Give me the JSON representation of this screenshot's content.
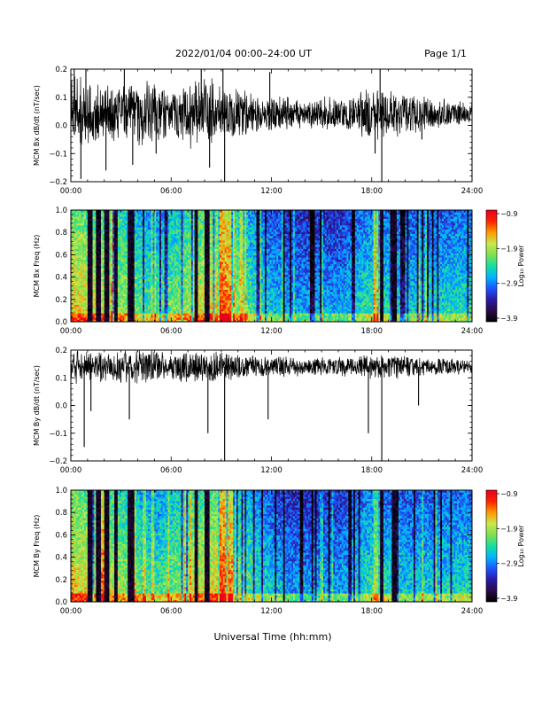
{
  "header": {
    "title": "2022/01/04  00:00–24:00 UT",
    "page": "Page 1/1"
  },
  "xlabel": "Universal Time (hh:mm)",
  "colorbar_label": "Log₁₀ Power",
  "colors": {
    "colormap": [
      "#000000",
      "#2a0a4a",
      "#2b1aa6",
      "#1c55ff",
      "#00b4ff",
      "#16e0a0",
      "#7fe050",
      "#c8e84a",
      "#ff9a00",
      "#ff2200",
      "#e6001a"
    ]
  },
  "chart_data": [
    {
      "type": "line",
      "series": [
        {
          "name": "",
          "values": []
        }
      ],
      "ylabel": "MCM Bx dB/dt (nT/sec)",
      "xlabel": "",
      "xlim": [
        0,
        24
      ],
      "ylim": [
        -0.2,
        0.2
      ],
      "xticks": [
        "00:00",
        "06:00",
        "12:00",
        "18:00",
        "24:00"
      ],
      "yticks": [
        "−0.2",
        "−0.1",
        "0.0",
        "0.1",
        "0.2"
      ],
      "baseline": 0.04,
      "activity_profile": [
        [
          0,
          0.14
        ],
        [
          1,
          0.14
        ],
        [
          2,
          0.11
        ],
        [
          3,
          0.11
        ],
        [
          4,
          0.13
        ],
        [
          5,
          0.12
        ],
        [
          6,
          0.09
        ],
        [
          7,
          0.13
        ],
        [
          8,
          0.14
        ],
        [
          9,
          0.12
        ],
        [
          10,
          0.1
        ],
        [
          11,
          0.08
        ],
        [
          12,
          0.07
        ],
        [
          13,
          0.07
        ],
        [
          14,
          0.06
        ],
        [
          15,
          0.07
        ],
        [
          16,
          0.07
        ],
        [
          17,
          0.08
        ],
        [
          18,
          0.1
        ],
        [
          19,
          0.09
        ],
        [
          20,
          0.08
        ],
        [
          21,
          0.07
        ],
        [
          22,
          0.06
        ],
        [
          23,
          0.05
        ],
        [
          24,
          0.04
        ]
      ],
      "spikes": [
        {
          "x": 0.2,
          "y": 0.2
        },
        {
          "x": 0.6,
          "y": -0.19
        },
        {
          "x": 0.9,
          "y": 0.2
        },
        {
          "x": 2.1,
          "y": -0.16
        },
        {
          "x": 3.2,
          "y": 0.2
        },
        {
          "x": 3.7,
          "y": -0.14
        },
        {
          "x": 5.1,
          "y": -0.1
        },
        {
          "x": 7.8,
          "y": 0.2
        },
        {
          "x": 8.3,
          "y": -0.15
        },
        {
          "x": 9.1,
          "y": 0.2
        },
        {
          "x": 9.2,
          "y": -0.2
        },
        {
          "x": 11.9,
          "y": 0.19
        },
        {
          "x": 18.2,
          "y": -0.1
        },
        {
          "x": 18.5,
          "y": 0.2
        },
        {
          "x": 18.6,
          "y": -0.2
        },
        {
          "x": 21.0,
          "y": -0.05
        }
      ]
    },
    {
      "type": "heatmap",
      "ylabel": "MCM Bx Freq (Hz)",
      "xlabel": "",
      "xlim": [
        0,
        24
      ],
      "ylim": [
        0,
        1.0
      ],
      "xticks": [
        "00:00",
        "06:00",
        "12:00",
        "18:00",
        "24:00"
      ],
      "yticks": [
        "0.0",
        "0.2",
        "0.4",
        "0.6",
        "0.8",
        "1.0"
      ],
      "colorbar": {
        "min": -3.9,
        "max": -0.9,
        "ticks": [
          "−0.9",
          "−1.9",
          "−2.9",
          "−3.9"
        ]
      },
      "dark_bands": [
        [
          1.0,
          1.25
        ],
        [
          1.5,
          1.75
        ],
        [
          2.05,
          2.25
        ],
        [
          2.6,
          2.75
        ],
        [
          3.4,
          3.8
        ],
        [
          7.4,
          7.55
        ],
        [
          8.0,
          8.25
        ],
        [
          12.7,
          12.8
        ],
        [
          18.5,
          18.7
        ],
        [
          19.2,
          19.5
        ]
      ],
      "bright_bands": [
        [
          8.8,
          9.8
        ],
        [
          18.1,
          18.4
        ]
      ],
      "activity_profile": [
        [
          0,
          -1.9
        ],
        [
          3,
          -2.2
        ],
        [
          5,
          -2.6
        ],
        [
          7,
          -2.2
        ],
        [
          9,
          -1.9
        ],
        [
          11,
          -2.6
        ],
        [
          13,
          -3.0
        ],
        [
          16,
          -3.0
        ],
        [
          18,
          -2.6
        ],
        [
          20,
          -2.8
        ],
        [
          24,
          -2.7
        ]
      ]
    },
    {
      "type": "line",
      "series": [
        {
          "name": "",
          "values": []
        }
      ],
      "ylabel": "MCM By dB/dt (nT/sec)",
      "xlabel": "",
      "xlim": [
        0,
        24
      ],
      "ylim": [
        -0.2,
        0.2
      ],
      "xticks": [
        "00:00",
        "06:00",
        "12:00",
        "18:00",
        "24:00"
      ],
      "yticks": [
        "−0.2",
        "−0.1",
        "0.0",
        "0.1",
        "0.2"
      ],
      "baseline": 0.14,
      "activity_profile": [
        [
          0,
          0.07
        ],
        [
          1,
          0.07
        ],
        [
          2,
          0.06
        ],
        [
          3,
          0.06
        ],
        [
          4,
          0.07
        ],
        [
          5,
          0.06
        ],
        [
          6,
          0.05
        ],
        [
          7,
          0.06
        ],
        [
          8,
          0.06
        ],
        [
          9,
          0.06
        ],
        [
          10,
          0.05
        ],
        [
          11,
          0.045
        ],
        [
          12,
          0.04
        ],
        [
          13,
          0.04
        ],
        [
          14,
          0.035
        ],
        [
          15,
          0.04
        ],
        [
          16,
          0.04
        ],
        [
          17,
          0.04
        ],
        [
          18,
          0.05
        ],
        [
          19,
          0.05
        ],
        [
          20,
          0.045
        ],
        [
          21,
          0.04
        ],
        [
          22,
          0.035
        ],
        [
          23,
          0.03
        ],
        [
          24,
          0.03
        ]
      ],
      "spikes": [
        {
          "x": 0.8,
          "y": -0.15
        },
        {
          "x": 1.2,
          "y": -0.02
        },
        {
          "x": 3.5,
          "y": -0.05
        },
        {
          "x": 8.2,
          "y": -0.1
        },
        {
          "x": 9.2,
          "y": -0.2
        },
        {
          "x": 11.8,
          "y": -0.05
        },
        {
          "x": 17.8,
          "y": -0.1
        },
        {
          "x": 18.6,
          "y": -0.2
        },
        {
          "x": 20.8,
          "y": 0.0
        }
      ]
    },
    {
      "type": "heatmap",
      "ylabel": "MCM By Freq (Hz)",
      "xlabel": "",
      "xlim": [
        0,
        24
      ],
      "ylim": [
        0,
        1.0
      ],
      "xticks": [
        "00:00",
        "06:00",
        "12:00",
        "18:00",
        "24:00"
      ],
      "yticks": [
        "0.0",
        "0.2",
        "0.4",
        "0.6",
        "0.8",
        "1.0"
      ],
      "colorbar": {
        "min": -3.9,
        "max": -0.9,
        "ticks": [
          "−0.9",
          "−1.9",
          "−2.9",
          "−3.9"
        ]
      },
      "dark_bands": [
        [
          1.0,
          1.25
        ],
        [
          1.5,
          1.75
        ],
        [
          2.05,
          2.25
        ],
        [
          2.6,
          2.75
        ],
        [
          3.4,
          3.8
        ],
        [
          7.4,
          7.55
        ],
        [
          8.0,
          8.25
        ],
        [
          12.7,
          12.8
        ],
        [
          18.5,
          18.7
        ],
        [
          19.2,
          19.5
        ]
      ],
      "bright_bands": [
        [
          8.8,
          9.8
        ],
        [
          18.1,
          18.4
        ]
      ],
      "activity_profile": [
        [
          0,
          -1.9
        ],
        [
          3,
          -2.2
        ],
        [
          5,
          -2.6
        ],
        [
          7,
          -2.2
        ],
        [
          9,
          -1.9
        ],
        [
          11,
          -2.6
        ],
        [
          13,
          -3.0
        ],
        [
          16,
          -3.0
        ],
        [
          18,
          -2.6
        ],
        [
          20,
          -2.8
        ],
        [
          24,
          -2.7
        ]
      ]
    }
  ]
}
